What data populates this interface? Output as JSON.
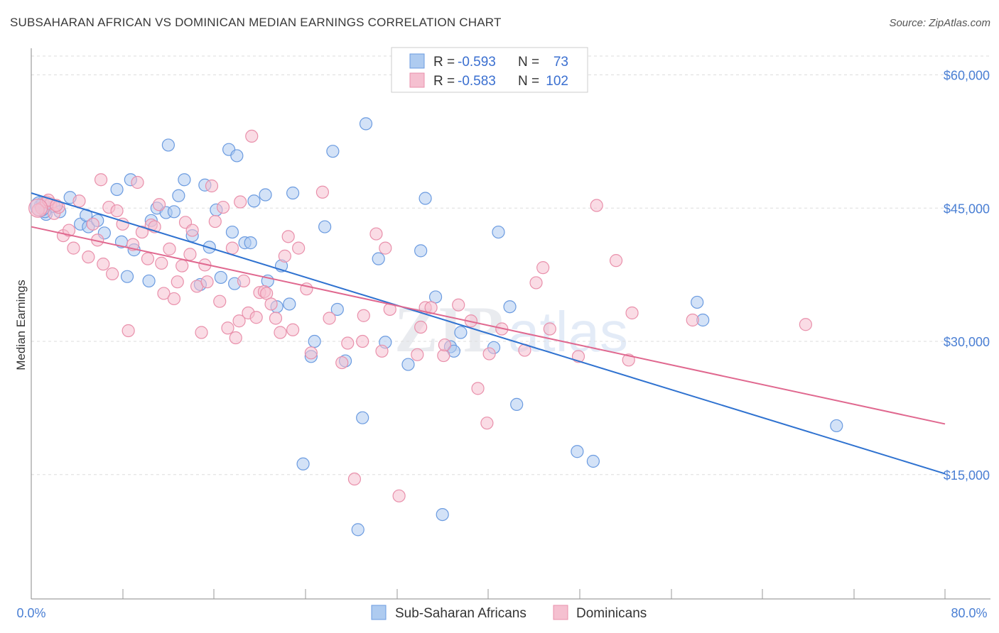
{
  "title": "SUBSAHARAN AFRICAN VS DOMINICAN MEDIAN EARNINGS CORRELATION CHART",
  "source": "Source: ZipAtlas.com",
  "colors": {
    "blue_fill": "#aecbf0",
    "blue_stroke": "#6b9be0",
    "blue_line": "#2f72d0",
    "pink_fill": "#f5c0d0",
    "pink_stroke": "#e990ab",
    "pink_line": "#e0688f",
    "grid": "#dddddd",
    "tick_text": "#4a7fd4"
  },
  "legend": {
    "rows": [
      {
        "r_label": "R = ",
        "r_value": "-0.593",
        "n_label": "N = ",
        "n_value": " 73"
      },
      {
        "r_label": "R = ",
        "r_value": "-0.583",
        "n_label": "N = ",
        "n_value": "102"
      }
    ]
  },
  "watermark": {
    "zip": "ZIP",
    "atlas": "atlas"
  },
  "chart_data": {
    "type": "scatter",
    "ylabel": "Median Earnings",
    "xlabel": "",
    "xlim": [
      0,
      80
    ],
    "ylim": [
      1000,
      63000
    ],
    "x_tick_labels": [
      "0.0%",
      "80.0%"
    ],
    "y_ticks": [
      15000,
      30000,
      45000,
      60000
    ],
    "y_tick_labels": [
      "$15,000",
      "$30,000",
      "$45,000",
      "$60,000"
    ],
    "grid": true,
    "legend_position": "top-center",
    "series": [
      {
        "name": "Sub-Saharan Africans",
        "trend": [
          [
            0,
            46700
          ],
          [
            80,
            15100
          ]
        ],
        "points": [
          [
            0.8,
            45300
          ],
          [
            1.0,
            45600
          ],
          [
            1.3,
            44300
          ],
          [
            2.0,
            45200
          ],
          [
            2.5,
            44600
          ],
          [
            3.4,
            46200
          ],
          [
            4.3,
            43200
          ],
          [
            4.8,
            44200
          ],
          [
            5.0,
            42900
          ],
          [
            5.8,
            43600
          ],
          [
            6.4,
            42200
          ],
          [
            7.5,
            47100
          ],
          [
            7.9,
            41200
          ],
          [
            8.4,
            37300
          ],
          [
            8.7,
            48200
          ],
          [
            9.0,
            40300
          ],
          [
            10.3,
            36800
          ],
          [
            10.5,
            43600
          ],
          [
            11.0,
            45000
          ],
          [
            11.8,
            44500
          ],
          [
            12.0,
            52100
          ],
          [
            12.5,
            44600
          ],
          [
            12.9,
            46400
          ],
          [
            13.4,
            48200
          ],
          [
            14.1,
            41900
          ],
          [
            14.8,
            36400
          ],
          [
            15.2,
            47600
          ],
          [
            15.6,
            40600
          ],
          [
            16.2,
            44800
          ],
          [
            16.6,
            37200
          ],
          [
            17.3,
            51600
          ],
          [
            17.6,
            42300
          ],
          [
            17.8,
            36500
          ],
          [
            18.0,
            50900
          ],
          [
            18.7,
            41100
          ],
          [
            19.2,
            41100
          ],
          [
            19.5,
            45800
          ],
          [
            20.5,
            46500
          ],
          [
            20.7,
            36800
          ],
          [
            21.5,
            33900
          ],
          [
            21.9,
            38500
          ],
          [
            22.6,
            34200
          ],
          [
            22.9,
            46700
          ],
          [
            23.8,
            16200
          ],
          [
            24.5,
            28300
          ],
          [
            24.8,
            30000
          ],
          [
            25.7,
            42900
          ],
          [
            26.4,
            51400
          ],
          [
            26.8,
            33600
          ],
          [
            27.5,
            27800
          ],
          [
            28.6,
            8800
          ],
          [
            29.0,
            21400
          ],
          [
            29.3,
            54500
          ],
          [
            30.4,
            39300
          ],
          [
            31.0,
            29900
          ],
          [
            33.0,
            27400
          ],
          [
            34.1,
            40200
          ],
          [
            34.5,
            46100
          ],
          [
            35.4,
            35000
          ],
          [
            36.0,
            10500
          ],
          [
            36.7,
            29400
          ],
          [
            37.0,
            28900
          ],
          [
            37.6,
            31000
          ],
          [
            40.5,
            29300
          ],
          [
            40.9,
            42300
          ],
          [
            41.9,
            33900
          ],
          [
            42.5,
            22900
          ],
          [
            47.8,
            17600
          ],
          [
            49.2,
            16500
          ],
          [
            58.3,
            34400
          ],
          [
            58.8,
            32400
          ],
          [
            70.5,
            20500
          ],
          [
            1.2,
            44600
          ]
        ]
      },
      {
        "name": "Dominicans",
        "trend": [
          [
            0,
            42900
          ],
          [
            80,
            20700
          ]
        ],
        "points": [
          [
            0.9,
            45000
          ],
          [
            1.3,
            45700
          ],
          [
            1.7,
            45500
          ],
          [
            2.0,
            44400
          ],
          [
            2.4,
            45100
          ],
          [
            2.8,
            41900
          ],
          [
            3.3,
            42500
          ],
          [
            3.7,
            40500
          ],
          [
            4.2,
            45800
          ],
          [
            5.0,
            39500
          ],
          [
            5.4,
            43200
          ],
          [
            5.8,
            41400
          ],
          [
            6.1,
            48200
          ],
          [
            6.3,
            38700
          ],
          [
            6.8,
            45100
          ],
          [
            7.1,
            37600
          ],
          [
            7.5,
            44700
          ],
          [
            8.0,
            43200
          ],
          [
            8.5,
            31200
          ],
          [
            8.9,
            40900
          ],
          [
            9.3,
            47900
          ],
          [
            9.7,
            42300
          ],
          [
            10.2,
            39300
          ],
          [
            10.5,
            43100
          ],
          [
            10.8,
            42900
          ],
          [
            11.2,
            45400
          ],
          [
            11.4,
            38800
          ],
          [
            11.6,
            35400
          ],
          [
            12.1,
            40400
          ],
          [
            12.5,
            34800
          ],
          [
            12.8,
            36700
          ],
          [
            13.2,
            38500
          ],
          [
            13.5,
            43400
          ],
          [
            13.9,
            39800
          ],
          [
            14.1,
            42500
          ],
          [
            14.5,
            36200
          ],
          [
            14.9,
            31000
          ],
          [
            15.2,
            38600
          ],
          [
            15.4,
            36700
          ],
          [
            15.8,
            47500
          ],
          [
            16.1,
            43500
          ],
          [
            16.5,
            34500
          ],
          [
            16.8,
            45100
          ],
          [
            17.2,
            31500
          ],
          [
            17.6,
            40500
          ],
          [
            17.9,
            30400
          ],
          [
            18.2,
            32300
          ],
          [
            18.6,
            36800
          ],
          [
            19.0,
            33200
          ],
          [
            19.3,
            53100
          ],
          [
            19.7,
            32700
          ],
          [
            20.0,
            35500
          ],
          [
            20.4,
            35600
          ],
          [
            20.6,
            35400
          ],
          [
            21.0,
            34200
          ],
          [
            21.4,
            32600
          ],
          [
            21.8,
            31000
          ],
          [
            22.2,
            39600
          ],
          [
            22.9,
            31300
          ],
          [
            23.4,
            40500
          ],
          [
            24.1,
            35900
          ],
          [
            24.5,
            28700
          ],
          [
            25.5,
            46800
          ],
          [
            26.1,
            32600
          ],
          [
            27.2,
            27600
          ],
          [
            27.7,
            29800
          ],
          [
            28.3,
            14500
          ],
          [
            29.0,
            30000
          ],
          [
            29.1,
            32900
          ],
          [
            30.2,
            42100
          ],
          [
            30.7,
            28900
          ],
          [
            31.0,
            40500
          ],
          [
            31.4,
            33600
          ],
          [
            32.2,
            12600
          ],
          [
            33.8,
            28500
          ],
          [
            34.1,
            31600
          ],
          [
            34.5,
            33800
          ],
          [
            35.0,
            33800
          ],
          [
            36.1,
            28400
          ],
          [
            36.2,
            29600
          ],
          [
            37.4,
            34100
          ],
          [
            38.5,
            32300
          ],
          [
            39.1,
            24700
          ],
          [
            39.9,
            20800
          ],
          [
            40.1,
            28600
          ],
          [
            41.2,
            31400
          ],
          [
            43.2,
            29000
          ],
          [
            44.2,
            36600
          ],
          [
            44.8,
            38300
          ],
          [
            45.4,
            31400
          ],
          [
            47.9,
            28300
          ],
          [
            49.5,
            45300
          ],
          [
            51.2,
            39100
          ],
          [
            52.3,
            27900
          ],
          [
            52.6,
            33200
          ],
          [
            57.9,
            32400
          ],
          [
            67.8,
            31900
          ],
          [
            0.6,
            44800
          ],
          [
            1.5,
            45900
          ],
          [
            2.2,
            45300
          ],
          [
            22.5,
            41800
          ],
          [
            18.3,
            45700
          ]
        ]
      }
    ]
  }
}
